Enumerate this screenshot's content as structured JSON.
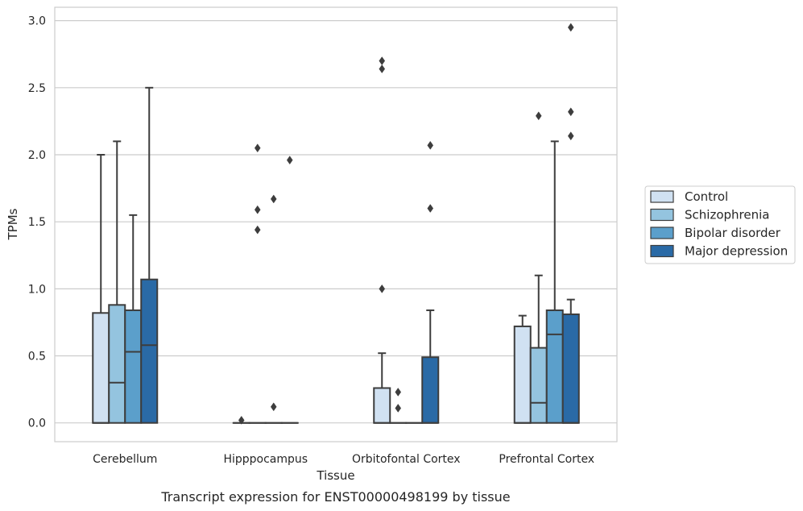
{
  "chart_data": {
    "type": "box",
    "title": "Transcript expression for ENST00000498199 by tissue",
    "xlabel": "Tissue",
    "ylabel": "TPMs",
    "ylim": [
      -0.14,
      3.1
    ],
    "yticks": [
      "0.0",
      "0.5",
      "1.0",
      "1.5",
      "2.0",
      "2.5",
      "3.0"
    ],
    "grid": true,
    "legend_position": "right",
    "categories": [
      "Cerebellum",
      "Hipppocampus",
      "Orbitofontal Cortex",
      "Prefrontal Cortex"
    ],
    "series": [
      {
        "name": "Control",
        "color": "#d0e1f2",
        "boxes": [
          {
            "q1": 0.0,
            "median": 0.0,
            "q3": 0.82,
            "whisker_low": 0.0,
            "whisker_high": 2.0,
            "outliers": []
          },
          {
            "q1": 0.0,
            "median": 0.0,
            "q3": 0.0,
            "whisker_low": 0.0,
            "whisker_high": 0.0,
            "outliers": [
              0.02
            ]
          },
          {
            "q1": 0.0,
            "median": 0.0,
            "q3": 0.26,
            "whisker_low": 0.0,
            "whisker_high": 0.52,
            "outliers": [
              1.0,
              2.64,
              2.7
            ]
          },
          {
            "q1": 0.0,
            "median": 0.0,
            "q3": 0.72,
            "whisker_low": 0.0,
            "whisker_high": 0.8,
            "outliers": []
          }
        ]
      },
      {
        "name": "Schizophrenia",
        "color": "#94c4df",
        "boxes": [
          {
            "q1": 0.0,
            "median": 0.3,
            "q3": 0.88,
            "whisker_low": 0.0,
            "whisker_high": 2.1,
            "outliers": []
          },
          {
            "q1": 0.0,
            "median": 0.0,
            "q3": 0.0,
            "whisker_low": 0.0,
            "whisker_high": 0.0,
            "outliers": [
              1.44,
              1.59,
              2.05
            ]
          },
          {
            "q1": 0.0,
            "median": 0.0,
            "q3": 0.0,
            "whisker_low": 0.0,
            "whisker_high": 0.0,
            "outliers": [
              0.11,
              0.23
            ]
          },
          {
            "q1": 0.0,
            "median": 0.15,
            "q3": 0.56,
            "whisker_low": 0.0,
            "whisker_high": 1.1,
            "outliers": [
              2.29
            ]
          }
        ]
      },
      {
        "name": "Bipolar disorder",
        "color": "#5b9fcb",
        "boxes": [
          {
            "q1": 0.0,
            "median": 0.53,
            "q3": 0.84,
            "whisker_low": 0.0,
            "whisker_high": 1.55,
            "outliers": []
          },
          {
            "q1": 0.0,
            "median": 0.0,
            "q3": 0.0,
            "whisker_low": 0.0,
            "whisker_high": 0.0,
            "outliers": [
              0.12,
              1.67
            ]
          },
          {
            "q1": 0.0,
            "median": 0.0,
            "q3": 0.0,
            "whisker_low": 0.0,
            "whisker_high": 0.0,
            "outliers": []
          },
          {
            "q1": 0.0,
            "median": 0.66,
            "q3": 0.84,
            "whisker_low": 0.0,
            "whisker_high": 2.1,
            "outliers": []
          }
        ]
      },
      {
        "name": "Major depression",
        "color": "#2a6aa6",
        "boxes": [
          {
            "q1": 0.0,
            "median": 0.58,
            "q3": 1.07,
            "whisker_low": 0.0,
            "whisker_high": 2.5,
            "outliers": []
          },
          {
            "q1": 0.0,
            "median": 0.0,
            "q3": 0.0,
            "whisker_low": 0.0,
            "whisker_high": 0.0,
            "outliers": [
              1.96
            ]
          },
          {
            "q1": 0.0,
            "median": 0.0,
            "q3": 0.49,
            "whisker_low": 0.0,
            "whisker_high": 0.84,
            "outliers": [
              1.6,
              2.07
            ]
          },
          {
            "q1": 0.0,
            "median": 0.0,
            "q3": 0.81,
            "whisker_low": 0.0,
            "whisker_high": 0.92,
            "outliers": [
              2.14,
              2.32,
              2.95
            ]
          }
        ]
      }
    ]
  }
}
